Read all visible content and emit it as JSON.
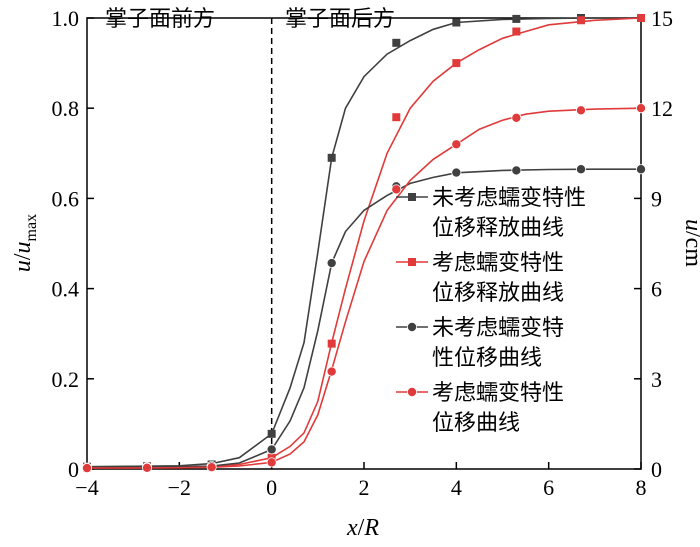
{
  "chart_data": {
    "type": "line",
    "xlabel": {
      "var": "x",
      "sep": "/",
      "unit": "R"
    },
    "ylabel_left": {
      "var": "u",
      "sep": "/",
      "sub_var": "u",
      "sub": "max"
    },
    "ylabel_right": {
      "var": "u",
      "sep": "/",
      "unit": "cm"
    },
    "xlim": [
      -4,
      8
    ],
    "ylim_left": [
      0,
      1.0
    ],
    "ylim_right": [
      0,
      15
    ],
    "x_ticks": [
      -4,
      -2,
      0,
      2,
      4,
      6,
      8
    ],
    "x_tick_labels": [
      "−4",
      "−2",
      "0",
      "2",
      "4",
      "6",
      "8"
    ],
    "y_left_ticks": [
      0,
      0.2,
      0.4,
      0.6,
      0.8,
      1.0
    ],
    "y_left_tick_labels": [
      "0",
      "0.2",
      "0.4",
      "0.6",
      "0.8",
      "1.0"
    ],
    "y_right_ticks": [
      0,
      3,
      6,
      9,
      12,
      15
    ],
    "y_right_tick_labels": [
      "0",
      "3",
      "6",
      "9",
      "12",
      "15"
    ],
    "face_x": 0,
    "region_labels": {
      "before": "掌子面前方",
      "after": "掌子面后方"
    },
    "legend_position": "center-right",
    "series": [
      {
        "name": [
          "未考虑蠕变特性",
          "位移释放曲线"
        ],
        "color": "#404040",
        "marker": "square",
        "axis": "left",
        "line": {
          "x": [
            -4,
            -3,
            -2,
            -1.3,
            -0.7,
            0,
            0.4,
            0.7,
            1.0,
            1.3,
            1.6,
            2.0,
            2.5,
            3.0,
            3.5,
            4.0,
            5.0,
            6.0,
            7.0,
            8.0
          ],
          "y": [
            0.005,
            0.006,
            0.007,
            0.012,
            0.025,
            0.078,
            0.18,
            0.28,
            0.48,
            0.69,
            0.8,
            0.87,
            0.92,
            0.95,
            0.975,
            0.99,
            0.997,
            0.999,
            1.0,
            1.0
          ]
        },
        "markers": {
          "x": [
            -4,
            -2.7,
            -1.3,
            0,
            1.3,
            2.7,
            4,
            5.3,
            6.7,
            8
          ],
          "y": [
            0.005,
            0.006,
            0.01,
            0.078,
            0.69,
            0.945,
            0.99,
            0.998,
            1.0,
            1.0
          ]
        }
      },
      {
        "name": [
          "考虑蠕变特性",
          "位移释放曲线"
        ],
        "color": "#e03a3a",
        "marker": "square",
        "axis": "left",
        "line": {
          "x": [
            -4,
            -3,
            -2,
            -1.3,
            -0.7,
            0,
            0.4,
            0.7,
            1.0,
            1.3,
            1.6,
            2.0,
            2.5,
            3.0,
            3.5,
            4.0,
            4.5,
            5.0,
            5.5,
            6.0,
            7.0,
            8.0
          ],
          "y": [
            0.003,
            0.003,
            0.004,
            0.006,
            0.01,
            0.025,
            0.05,
            0.08,
            0.15,
            0.28,
            0.4,
            0.55,
            0.7,
            0.8,
            0.86,
            0.9,
            0.93,
            0.955,
            0.97,
            0.985,
            0.995,
            1.0
          ]
        },
        "markers": {
          "x": [
            -4,
            -2.7,
            -1.3,
            0,
            1.3,
            2.7,
            4,
            5.3,
            6.7,
            8
          ],
          "y": [
            0.003,
            0.004,
            0.006,
            0.025,
            0.278,
            0.78,
            0.9,
            0.97,
            0.995,
            1.0
          ]
        }
      },
      {
        "name": [
          "未考虑蠕变特",
          "性位移曲线"
        ],
        "color": "#404040",
        "marker": "circle",
        "axis": "right",
        "line": {
          "x": [
            -4,
            -3,
            -2,
            -1.3,
            -0.7,
            0,
            0.4,
            0.7,
            1.0,
            1.3,
            1.6,
            2.0,
            2.5,
            3.0,
            3.5,
            4.0,
            5.0,
            6.0,
            7.0,
            8.0
          ],
          "y": [
            0.05,
            0.06,
            0.07,
            0.1,
            0.2,
            0.65,
            1.6,
            2.7,
            4.6,
            6.85,
            7.9,
            8.6,
            9.1,
            9.5,
            9.7,
            9.85,
            9.93,
            9.96,
            9.97,
            9.97
          ]
        },
        "markers": {
          "x": [
            -4,
            -2.7,
            -1.3,
            0,
            1.3,
            2.7,
            4,
            5.3,
            6.7,
            8
          ],
          "y": [
            0.05,
            0.06,
            0.1,
            0.65,
            6.85,
            9.4,
            9.86,
            9.93,
            9.97,
            9.97
          ]
        }
      },
      {
        "name": [
          "考虑蠕变特性",
          "位移曲线"
        ],
        "color": "#e03a3a",
        "marker": "circle",
        "axis": "right",
        "line": {
          "x": [
            -4,
            -3,
            -2,
            -1.3,
            -0.7,
            0,
            0.4,
            0.7,
            1.0,
            1.3,
            1.6,
            2.0,
            2.5,
            3.0,
            3.5,
            4.0,
            4.5,
            5.0,
            5.5,
            6.0,
            7.0,
            8.0
          ],
          "y": [
            0.03,
            0.03,
            0.04,
            0.06,
            0.1,
            0.22,
            0.5,
            0.9,
            1.8,
            3.3,
            4.9,
            6.9,
            8.6,
            9.6,
            10.3,
            10.8,
            11.3,
            11.6,
            11.8,
            11.9,
            11.97,
            12.0
          ]
        },
        "markers": {
          "x": [
            -4,
            -2.7,
            -1.3,
            0,
            1.3,
            2.7,
            4,
            5.3,
            6.7,
            8
          ],
          "y": [
            0.03,
            0.04,
            0.06,
            0.22,
            3.24,
            9.3,
            10.8,
            11.68,
            11.93,
            12.0
          ]
        }
      }
    ]
  }
}
